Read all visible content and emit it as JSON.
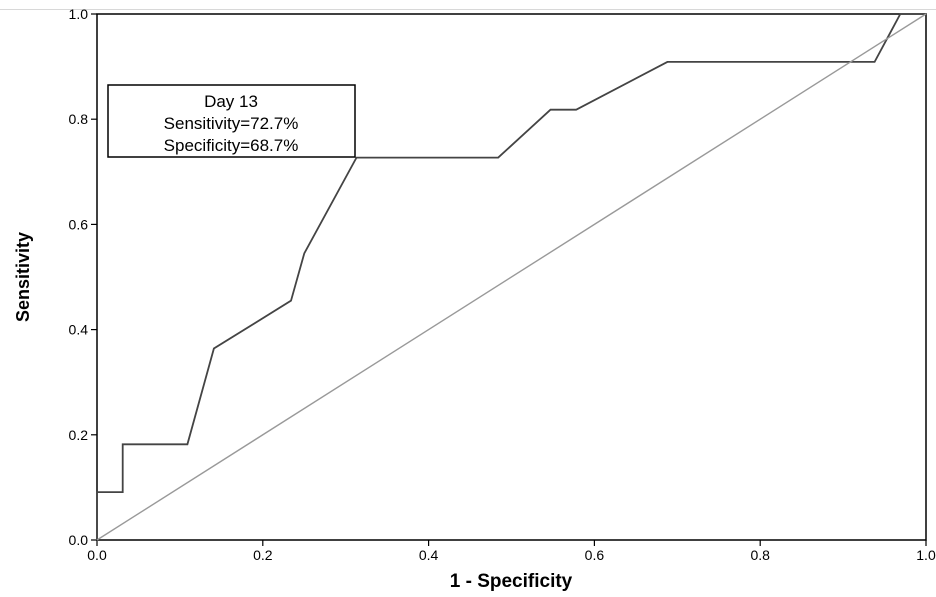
{
  "chart_data": {
    "type": "line",
    "title": "",
    "xlabel": "1 - Specificity",
    "ylabel": "Sensitivity",
    "xlim": [
      0,
      1
    ],
    "ylim": [
      0,
      1
    ],
    "x_ticks": [
      "0.0",
      "0.2",
      "0.4",
      "0.6",
      "0.8",
      "1.0"
    ],
    "y_ticks": [
      "0.0",
      "0.2",
      "0.4",
      "0.6",
      "0.8",
      "1.0"
    ],
    "grid": false,
    "legend": "none",
    "series": [
      {
        "color": "#444444",
        "x": [
          0,
          0,
          0.031,
          0.031,
          0.109,
          0.141,
          0.234,
          0.25,
          0.313,
          0.484,
          0.547,
          0.578,
          0.688,
          0.938,
          0.969,
          1.0
        ],
        "y": [
          0,
          0.091,
          0.091,
          0.182,
          0.182,
          0.364,
          0.455,
          0.545,
          0.727,
          0.727,
          0.818,
          0.818,
          0.909,
          0.909,
          1.0,
          1.0
        ]
      },
      {
        "color": "#999999",
        "x": [
          0,
          1
        ],
        "y": [
          0,
          1
        ]
      }
    ],
    "annotation": {
      "lines": [
        "Day 13",
        "Sensitivity=72.7%",
        "Specificity=68.7%"
      ]
    }
  }
}
